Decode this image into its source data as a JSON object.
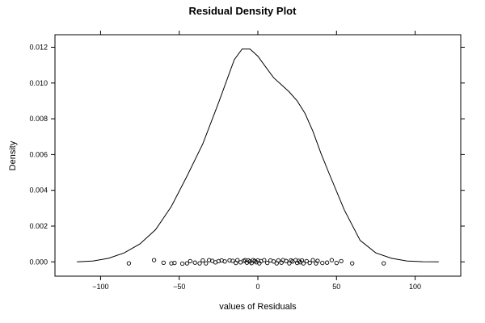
{
  "chart_data": {
    "type": "line",
    "title": "Residual Density Plot",
    "xlabel": "values of Residuals",
    "ylabel": "Density",
    "xlim": [
      -129,
      129
    ],
    "ylim": [
      -0.0008,
      0.0127
    ],
    "x_ticks": [
      -100,
      -50,
      0,
      50,
      100
    ],
    "x_tick_labels": [
      "−100",
      "−50",
      "0",
      "50",
      "100"
    ],
    "y_ticks": [
      0.0,
      0.002,
      0.004,
      0.006,
      0.008,
      0.01,
      0.012
    ],
    "y_tick_labels": [
      "0.000",
      "0.002",
      "0.004",
      "0.006",
      "0.008",
      "0.010",
      "0.012"
    ],
    "grid": false,
    "line_color": "#000000",
    "series": [
      {
        "x": [
          -115,
          -105,
          -95,
          -85,
          -75,
          -65,
          -55,
          -45,
          -35,
          -25,
          -15,
          -10,
          -5,
          0,
          5,
          10,
          15,
          20,
          25,
          30,
          35,
          40,
          45,
          55,
          65,
          75,
          85,
          95,
          105,
          115
        ],
        "y": [
          0.0,
          5e-05,
          0.0002,
          0.0005,
          0.001,
          0.0018,
          0.0031,
          0.0048,
          0.0066,
          0.0089,
          0.0113,
          0.0119,
          0.0119,
          0.0115,
          0.0109,
          0.0103,
          0.0099,
          0.0095,
          0.009,
          0.0083,
          0.0073,
          0.0061,
          0.005,
          0.0029,
          0.0012,
          0.0005,
          0.0002,
          5e-05,
          1e-05,
          0.0
        ]
      }
    ],
    "rug_points": [
      {
        "x": -82,
        "y": -8e-05
      },
      {
        "x": -66,
        "y": 0.0001
      },
      {
        "x": -60,
        "y": -5e-05
      },
      {
        "x": -55,
        "y": -8e-05
      },
      {
        "x": -53,
        "y": -6e-05
      },
      {
        "x": -48,
        "y": -0.0001
      },
      {
        "x": -45,
        "y": -8e-05
      },
      {
        "x": -43,
        "y": 4e-05
      },
      {
        "x": -40,
        "y": -4e-05
      },
      {
        "x": -37,
        "y": -8e-05
      },
      {
        "x": -35,
        "y": 8e-05
      },
      {
        "x": -33,
        "y": -8e-05
      },
      {
        "x": -31,
        "y": 0.0001
      },
      {
        "x": -29,
        "y": 6e-05
      },
      {
        "x": -27,
        "y": -3e-05
      },
      {
        "x": -25,
        "y": 4e-05
      },
      {
        "x": -23,
        "y": 8e-05
      },
      {
        "x": -21,
        "y": 2e-05
      },
      {
        "x": -18,
        "y": 8e-05
      },
      {
        "x": -16,
        "y": 6e-05
      },
      {
        "x": -14,
        "y": -6e-05
      },
      {
        "x": -13,
        "y": 0.0001
      },
      {
        "x": -11,
        "y": -3e-05
      },
      {
        "x": -9,
        "y": 6e-05
      },
      {
        "x": -8,
        "y": 0.0001
      },
      {
        "x": -7,
        "y": -4e-05
      },
      {
        "x": -6,
        "y": 8e-05
      },
      {
        "x": -5,
        "y": 2e-05
      },
      {
        "x": -4,
        "y": -7e-05
      },
      {
        "x": -3,
        "y": 0.0001
      },
      {
        "x": -2,
        "y": 5e-05
      },
      {
        "x": -1,
        "y": -2e-05
      },
      {
        "x": 0,
        "y": 8e-05
      },
      {
        "x": 1,
        "y": -8e-05
      },
      {
        "x": 2,
        "y": 4e-05
      },
      {
        "x": 4,
        "y": 0.0001
      },
      {
        "x": 6,
        "y": -6e-05
      },
      {
        "x": 8,
        "y": 8e-05
      },
      {
        "x": 10,
        "y": 2e-05
      },
      {
        "x": 12,
        "y": -8e-05
      },
      {
        "x": 13,
        "y": 8e-05
      },
      {
        "x": 15,
        "y": -4e-05
      },
      {
        "x": 16,
        "y": 0.0001
      },
      {
        "x": 18,
        "y": 5e-05
      },
      {
        "x": 20,
        "y": -8e-05
      },
      {
        "x": 21,
        "y": 8e-05
      },
      {
        "x": 22,
        "y": 2e-05
      },
      {
        "x": 24,
        "y": 0.0001
      },
      {
        "x": 25,
        "y": -6e-05
      },
      {
        "x": 26,
        "y": 6e-05
      },
      {
        "x": 27,
        "y": -2e-05
      },
      {
        "x": 28,
        "y": 8e-05
      },
      {
        "x": 29,
        "y": -8e-05
      },
      {
        "x": 31,
        "y": 4e-05
      },
      {
        "x": 33,
        "y": -6e-05
      },
      {
        "x": 35,
        "y": 0.0001
      },
      {
        "x": 37,
        "y": -8e-05
      },
      {
        "x": 38,
        "y": 6e-05
      },
      {
        "x": 41,
        "y": -6e-05
      },
      {
        "x": 44,
        "y": -4e-05
      },
      {
        "x": 47,
        "y": 0.0001
      },
      {
        "x": 50,
        "y": -6e-05
      },
      {
        "x": 53,
        "y": 4e-05
      },
      {
        "x": 60,
        "y": -8e-05
      },
      {
        "x": 80,
        "y": -8e-05
      }
    ]
  }
}
